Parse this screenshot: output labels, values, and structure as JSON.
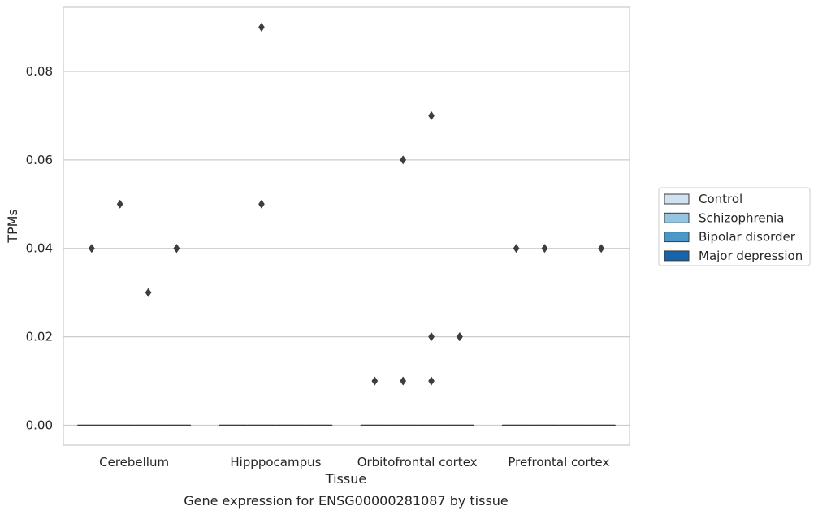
{
  "chart_data": {
    "type": "box",
    "xlabel": "Tissue",
    "ylabel": "TPMs",
    "caption": "Gene expression for ENSG00000281087 by tissue",
    "categories": [
      "Cerebellum",
      "Hipppocampus",
      "Orbitofrontal cortex",
      "Prefrontal cortex"
    ],
    "ylim": [
      -0.0045,
      0.0945
    ],
    "yticks": [
      "0.00",
      "0.02",
      "0.04",
      "0.06",
      "0.08"
    ],
    "grid": true,
    "legend_position": "right",
    "series": [
      {
        "name": "Control",
        "color": "#d0e1f2",
        "boxes": [
          {
            "q1": 0,
            "median": 0,
            "q3": 0,
            "whisker_low": 0,
            "whisker_high": 0,
            "outliers": [
              0.04
            ]
          },
          {
            "q1": 0,
            "median": 0,
            "q3": 0,
            "whisker_low": 0,
            "whisker_high": 0,
            "outliers": []
          },
          {
            "q1": 0,
            "median": 0,
            "q3": 0,
            "whisker_low": 0,
            "whisker_high": 0,
            "outliers": [
              0.01
            ]
          },
          {
            "q1": 0,
            "median": 0,
            "q3": 0,
            "whisker_low": 0,
            "whisker_high": 0,
            "outliers": [
              0.04
            ]
          }
        ]
      },
      {
        "name": "Schizophrenia",
        "color": "#94c4df",
        "boxes": [
          {
            "q1": 0,
            "median": 0,
            "q3": 0,
            "whisker_low": 0,
            "whisker_high": 0,
            "outliers": [
              0.05
            ]
          },
          {
            "q1": 0,
            "median": 0,
            "q3": 0,
            "whisker_low": 0,
            "whisker_high": 0,
            "outliers": [
              0.09,
              0.05
            ]
          },
          {
            "q1": 0,
            "median": 0,
            "q3": 0,
            "whisker_low": 0,
            "whisker_high": 0,
            "outliers": [
              0.06,
              0.01
            ]
          },
          {
            "q1": 0,
            "median": 0,
            "q3": 0,
            "whisker_low": 0,
            "whisker_high": 0,
            "outliers": [
              0.04
            ]
          }
        ]
      },
      {
        "name": "Bipolar disorder",
        "color": "#4a98c9",
        "boxes": [
          {
            "q1": 0,
            "median": 0,
            "q3": 0,
            "whisker_low": 0,
            "whisker_high": 0,
            "outliers": [
              0.03
            ]
          },
          {
            "q1": 0,
            "median": 0,
            "q3": 0,
            "whisker_low": 0,
            "whisker_high": 0,
            "outliers": []
          },
          {
            "q1": 0,
            "median": 0,
            "q3": 0,
            "whisker_low": 0,
            "whisker_high": 0,
            "outliers": [
              0.07,
              0.02,
              0.01
            ]
          },
          {
            "q1": 0,
            "median": 0,
            "q3": 0,
            "whisker_low": 0,
            "whisker_high": 0,
            "outliers": []
          }
        ]
      },
      {
        "name": "Major depression",
        "color": "#1764ab",
        "boxes": [
          {
            "q1": 0,
            "median": 0,
            "q3": 0,
            "whisker_low": 0,
            "whisker_high": 0,
            "outliers": [
              0.04,
              0.04
            ]
          },
          {
            "q1": 0,
            "median": 0,
            "q3": 0,
            "whisker_low": 0,
            "whisker_high": 0,
            "outliers": []
          },
          {
            "q1": 0,
            "median": 0,
            "q3": 0,
            "whisker_low": 0,
            "whisker_high": 0,
            "outliers": [
              0.02,
              0.02
            ]
          },
          {
            "q1": 0,
            "median": 0,
            "q3": 0,
            "whisker_low": 0,
            "whisker_high": 0,
            "outliers": [
              0.04
            ]
          }
        ]
      }
    ]
  }
}
